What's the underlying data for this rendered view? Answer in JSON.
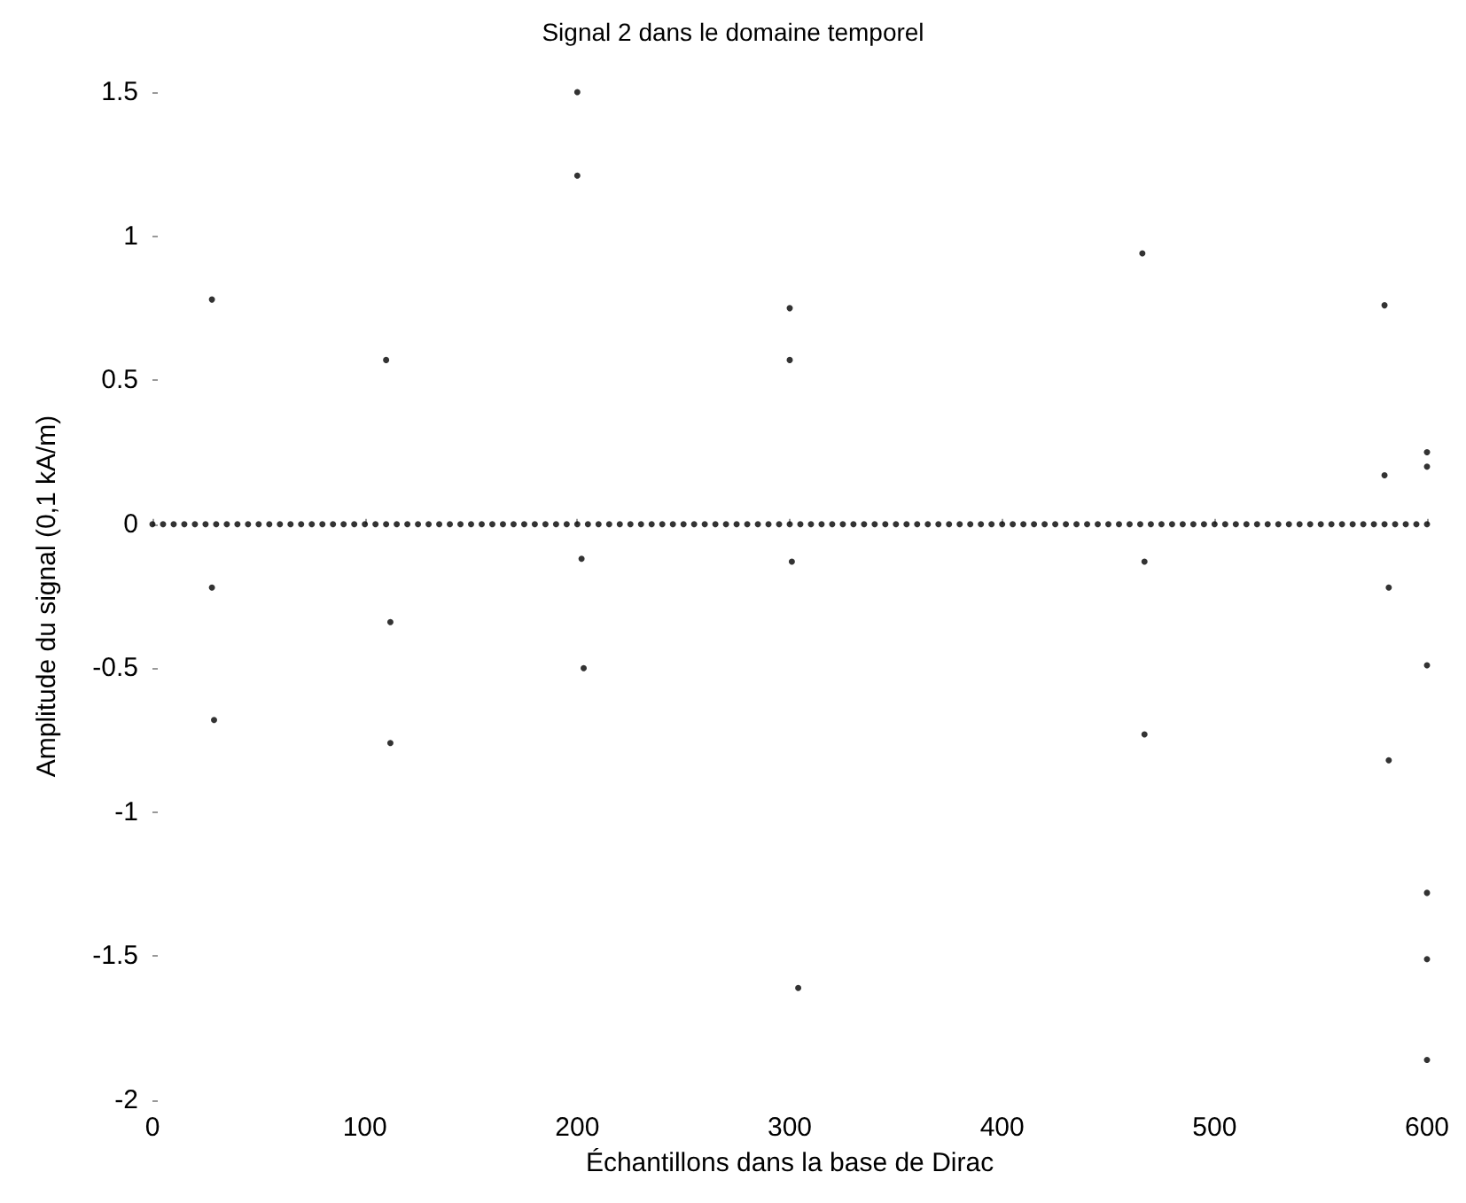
{
  "chart_data": {
    "type": "scatter",
    "title": "Signal 2 dans le domaine temporel",
    "xlabel": "Échantillons dans la base de Dirac",
    "ylabel": "Amplitude du signal (0,1 kA/m)",
    "x": [
      0,
      5,
      10,
      15,
      20,
      25,
      30,
      35,
      40,
      45,
      50,
      55,
      60,
      65,
      70,
      75,
      80,
      85,
      90,
      95,
      100,
      105,
      110,
      115,
      120,
      125,
      130,
      135,
      140,
      145,
      150,
      155,
      160,
      165,
      170,
      175,
      180,
      185,
      190,
      195,
      200,
      205,
      210,
      215,
      220,
      225,
      230,
      235,
      240,
      245,
      250,
      255,
      260,
      265,
      270,
      275,
      280,
      285,
      290,
      295,
      300,
      305,
      310,
      315,
      320,
      325,
      330,
      335,
      340,
      345,
      350,
      355,
      360,
      365,
      370,
      375,
      380,
      385,
      390,
      395,
      400,
      405,
      410,
      415,
      420,
      425,
      430,
      435,
      440,
      445,
      450,
      455,
      460,
      465,
      470,
      475,
      480,
      485,
      490,
      495,
      500,
      505,
      510,
      515,
      520,
      525,
      530,
      535,
      540,
      545,
      550,
      555,
      560,
      565,
      570,
      575,
      580,
      585,
      590,
      595,
      600,
      28,
      110,
      200,
      200,
      300,
      300,
      466,
      580,
      580,
      600,
      600,
      28,
      202,
      301,
      467,
      582,
      29,
      112,
      112,
      203,
      304,
      467,
      582,
      600,
      600,
      600,
      600
    ],
    "values": [
      0,
      0,
      0,
      0,
      0,
      0,
      0,
      0,
      0,
      0,
      0,
      0,
      0,
      0,
      0,
      0,
      0,
      0,
      0,
      0,
      0,
      0,
      0,
      0,
      0,
      0,
      0,
      0,
      0,
      0,
      0,
      0,
      0,
      0,
      0,
      0,
      0,
      0,
      0,
      0,
      0,
      0,
      0,
      0,
      0,
      0,
      0,
      0,
      0,
      0,
      0,
      0,
      0,
      0,
      0,
      0,
      0,
      0,
      0,
      0,
      0,
      0,
      0,
      0,
      0,
      0,
      0,
      0,
      0,
      0,
      0,
      0,
      0,
      0,
      0,
      0,
      0,
      0,
      0,
      0,
      0,
      0,
      0,
      0,
      0,
      0,
      0,
      0,
      0,
      0,
      0,
      0,
      0,
      0,
      0,
      0,
      0,
      0,
      0,
      0,
      0,
      0,
      0,
      0,
      0,
      0,
      0,
      0,
      0,
      0,
      0,
      0,
      0,
      0,
      0,
      0,
      0,
      0,
      0,
      0,
      0,
      0.78,
      0.57,
      1.21,
      1.5,
      0.75,
      0.57,
      0.94,
      0.76,
      0.17,
      0.25,
      0.2,
      -0.22,
      -0.12,
      -0.13,
      -0.13,
      -0.22,
      -0.68,
      -0.34,
      -0.76,
      -0.5,
      -1.61,
      -0.73,
      -0.82,
      -0.49,
      -1.28,
      -1.51,
      -1.86
    ],
    "color": "#000000",
    "marker": "circle",
    "xlim": [
      0,
      600
    ],
    "xticks": [
      0,
      100,
      200,
      300,
      400,
      500,
      600
    ],
    "ylim": [
      -2,
      1.5
    ],
    "yticks": [
      -2,
      -1.5,
      -1,
      -0.5,
      0,
      0.5,
      1,
      1.5
    ]
  }
}
